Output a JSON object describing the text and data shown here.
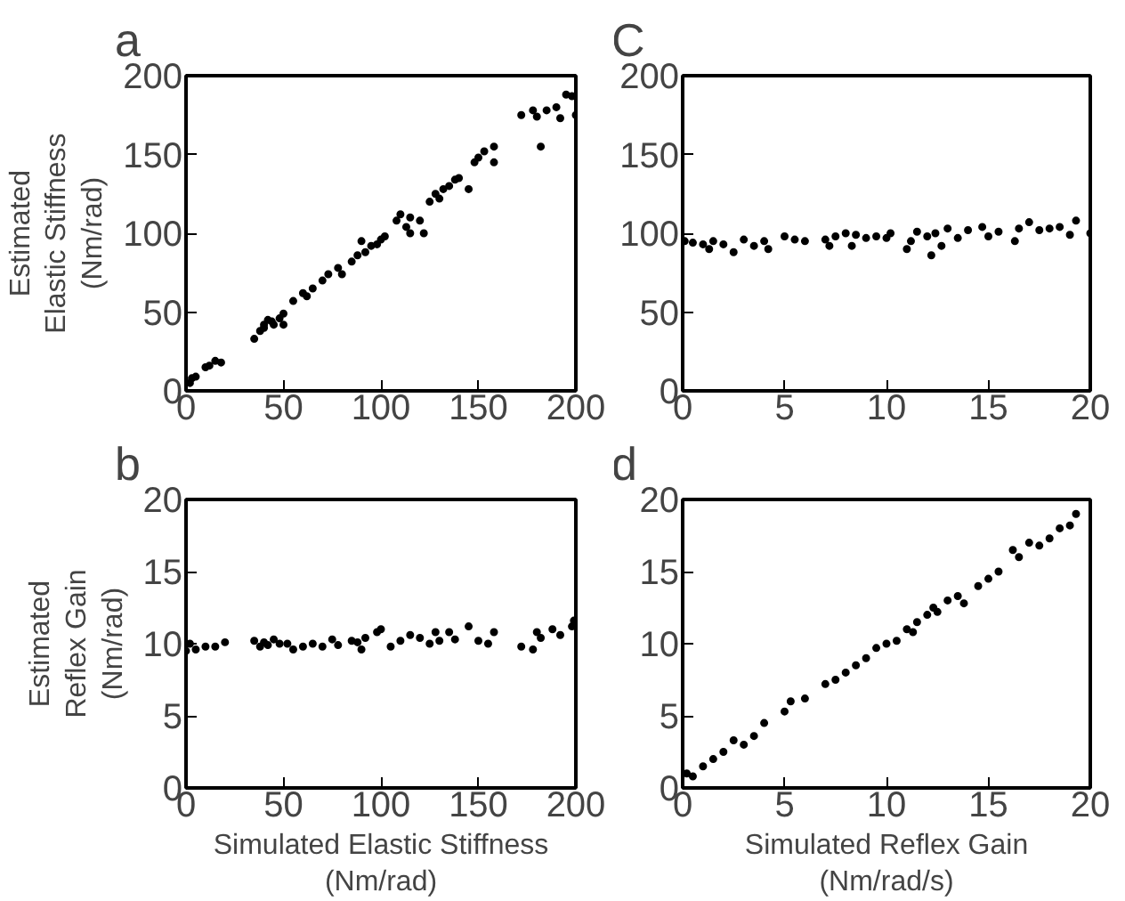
{
  "chart_data": [
    {
      "type": "scatter",
      "title": "a",
      "ylabel": "Estimated\nElastic Stiffness\n(Nm/rad)",
      "xlim": [
        0,
        200
      ],
      "ylim": [
        0,
        200
      ],
      "xticks": [
        0,
        50,
        100,
        150,
        200
      ],
      "yticks": [
        0,
        50,
        100,
        150,
        200
      ],
      "grid": false,
      "marker": "circle",
      "series": [
        {
          "color": "#000000",
          "x": [
            2,
            3,
            5,
            10,
            12,
            15,
            18,
            35,
            38,
            40,
            40,
            42,
            44,
            45,
            48,
            50,
            50,
            55,
            60,
            62,
            65,
            70,
            73,
            78,
            80,
            85,
            88,
            90,
            92,
            95,
            98,
            100,
            102,
            108,
            110,
            113,
            115,
            115,
            120,
            122,
            125,
            128,
            130,
            132,
            135,
            138,
            140,
            145,
            148,
            150,
            153,
            158,
            158,
            172,
            178,
            180,
            182,
            185,
            190,
            192,
            195,
            198,
            200
          ],
          "values": [
            5,
            8,
            9,
            15,
            16,
            19,
            18,
            33,
            38,
            42,
            40,
            45,
            44,
            42,
            46,
            42,
            49,
            57,
            62,
            60,
            65,
            70,
            74,
            78,
            74,
            82,
            86,
            95,
            88,
            92,
            93,
            96,
            98,
            108,
            112,
            104,
            110,
            100,
            108,
            100,
            120,
            125,
            122,
            128,
            130,
            134,
            135,
            128,
            145,
            148,
            152,
            155,
            145,
            175,
            178,
            174,
            155,
            178,
            180,
            173,
            188,
            187,
            175
          ]
        }
      ]
    },
    {
      "type": "scatter",
      "title": "C",
      "xlim": [
        0,
        20
      ],
      "ylim": [
        0,
        200
      ],
      "xticks": [
        0,
        5,
        10,
        15,
        20
      ],
      "yticks": [
        0,
        50,
        100,
        150,
        200
      ],
      "grid": false,
      "marker": "circle",
      "series": [
        {
          "color": "#000000",
          "x": [
            0.1,
            0.5,
            1,
            1.3,
            1.5,
            2,
            2.5,
            3,
            3.5,
            4,
            4.2,
            5,
            5.5,
            6,
            7,
            7.2,
            7.5,
            8,
            8.3,
            8.5,
            9,
            9.5,
            10,
            10.2,
            11,
            11.2,
            11.5,
            12,
            12.2,
            12.4,
            12.7,
            13,
            13.5,
            14,
            14.7,
            15,
            15.5,
            16.3,
            16.5,
            17,
            17.5,
            18,
            18.5,
            19,
            19.3,
            20
          ],
          "values": [
            95,
            94,
            93,
            90,
            95,
            93,
            88,
            96,
            92,
            95,
            90,
            98,
            96,
            95,
            96,
            92,
            98,
            100,
            92,
            99,
            97,
            98,
            97,
            100,
            90,
            95,
            101,
            98,
            86,
            100,
            92,
            103,
            97,
            102,
            104,
            98,
            101,
            95,
            103,
            107,
            102,
            103,
            104,
            99,
            108,
            100
          ]
        }
      ]
    },
    {
      "type": "scatter",
      "title": "b",
      "xlabel": "Simulated Elastic Stiffness\n(Nm/rad)",
      "ylabel": "Estimated\nReflex Gain\n(Nm/rad)",
      "xlim": [
        0,
        200
      ],
      "ylim": [
        0,
        20
      ],
      "xticks": [
        0,
        50,
        100,
        150,
        200
      ],
      "yticks": [
        0,
        5,
        10,
        15,
        20
      ],
      "grid": false,
      "marker": "circle",
      "series": [
        {
          "color": "#000000",
          "x": [
            0,
            2,
            5,
            10,
            15,
            20,
            35,
            38,
            40,
            42,
            45,
            48,
            52,
            55,
            60,
            65,
            70,
            75,
            78,
            85,
            88,
            90,
            92,
            98,
            100,
            105,
            110,
            115,
            120,
            125,
            128,
            130,
            135,
            138,
            145,
            150,
            155,
            158,
            172,
            178,
            180,
            182,
            188,
            192,
            198,
            199
          ],
          "values": [
            9.5,
            10,
            9.6,
            9.8,
            9.8,
            10.1,
            10.2,
            9.8,
            10.1,
            9.9,
            10.3,
            10,
            10,
            9.6,
            9.8,
            10,
            9.8,
            10.3,
            9.9,
            10.2,
            10.1,
            9.6,
            10.4,
            10.8,
            11,
            9.8,
            10.2,
            10.6,
            10.4,
            10,
            10.8,
            10.2,
            10.8,
            10.3,
            11.2,
            10.2,
            10,
            10.8,
            9.8,
            9.6,
            10.8,
            10.4,
            11,
            10.6,
            11.2,
            11.6
          ]
        }
      ]
    },
    {
      "type": "scatter",
      "title": "d",
      "xlabel": "Simulated Reflex Gain\n(Nm/rad/s)",
      "xlim": [
        0,
        20
      ],
      "ylim": [
        0,
        20
      ],
      "xticks": [
        0,
        5,
        10,
        15,
        20
      ],
      "yticks": [
        0,
        5,
        10,
        15,
        20
      ],
      "grid": false,
      "marker": "circle",
      "series": [
        {
          "color": "#000000",
          "x": [
            0.2,
            0.5,
            1,
            1.5,
            2,
            2.5,
            3,
            3.5,
            4,
            5,
            5.3,
            6,
            7,
            7.5,
            8,
            8.5,
            9,
            9.5,
            10,
            10.5,
            11,
            11.3,
            11.5,
            12,
            12.3,
            12.5,
            13,
            13.5,
            13.8,
            14.5,
            15,
            15.5,
            16.2,
            16.5,
            17,
            17.5,
            18,
            18.5,
            19,
            19.3
          ],
          "values": [
            1,
            0.8,
            1.5,
            2,
            2.5,
            3.3,
            3,
            3.6,
            4.5,
            5.3,
            6,
            6.2,
            7.2,
            7.5,
            8,
            8.5,
            9,
            9.7,
            10,
            10.2,
            11,
            10.8,
            11.5,
            12,
            12.5,
            12.2,
            13,
            13.3,
            12.8,
            14,
            14.5,
            15,
            16.5,
            16,
            17,
            16.8,
            17.3,
            18,
            18.2,
            19
          ]
        }
      ]
    }
  ]
}
